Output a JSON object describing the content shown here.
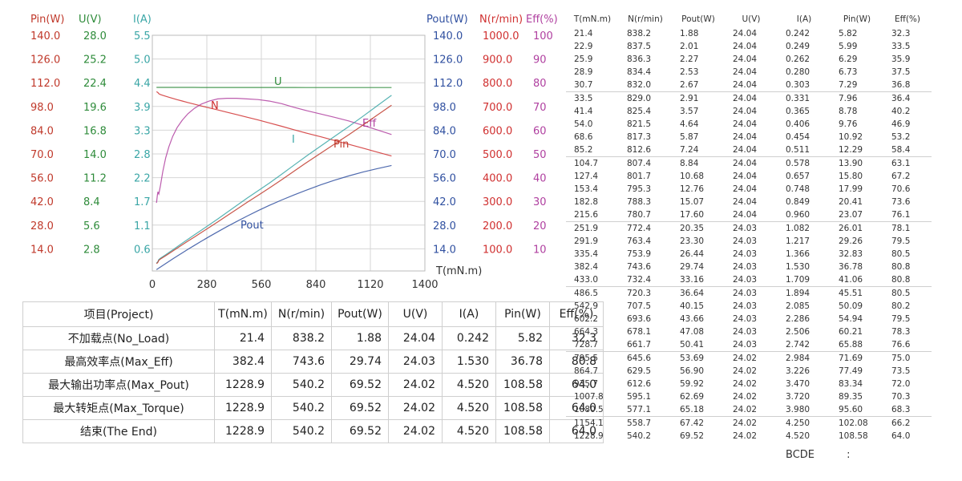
{
  "chart_data": {
    "type": "line",
    "x_axis": {
      "label": "T(mN.m)",
      "ticks": [
        0,
        280,
        560,
        840,
        1120,
        1400
      ],
      "range": [
        0,
        1400
      ]
    },
    "y_axes": [
      {
        "name": "Pin(W)",
        "color": "#c0392b",
        "ticks": [
          "140.0",
          "126.0",
          "112.0",
          "98.0",
          "84.0",
          "70.0",
          "56.0",
          "42.0",
          "28.0",
          "14.0"
        ]
      },
      {
        "name": "U(V)",
        "color": "#2e8b3a",
        "ticks": [
          "28.0",
          "25.2",
          "22.4",
          "19.6",
          "16.8",
          "14.0",
          "11.2",
          "8.4",
          "5.6",
          "2.8"
        ]
      },
      {
        "name": "I(A)",
        "color": "#3aa6a6",
        "ticks": [
          "5.5",
          "5.0",
          "4.4",
          "3.9",
          "3.3",
          "2.8",
          "2.2",
          "1.7",
          "1.1",
          "0.6"
        ]
      },
      {
        "name": "Pout(W)",
        "color": "#3050a0",
        "ticks": [
          "140.0",
          "126.0",
          "112.0",
          "98.0",
          "84.0",
          "70.0",
          "56.0",
          "42.0",
          "28.0",
          "14.0"
        ]
      },
      {
        "name": "N(r/min)",
        "color": "#d03030",
        "ticks": [
          "1000.0",
          "900.0",
          "800.0",
          "700.0",
          "600.0",
          "500.0",
          "400.0",
          "300.0",
          "200.0",
          "100.0"
        ]
      },
      {
        "name": "Eff(%)",
        "color": "#b040a0",
        "ticks": [
          "100",
          "90",
          "80",
          "70",
          "60",
          "50",
          "40",
          "30",
          "20",
          "10"
        ]
      }
    ],
    "series": [
      {
        "name": "U",
        "color": "#2e8b3a",
        "axis_max": 30.8
      },
      {
        "name": "N",
        "color": "#d03030",
        "axis_max": 1100
      },
      {
        "name": "Eff",
        "color": "#b040a0",
        "axis_max": 110
      },
      {
        "name": "I",
        "color": "#3aa6a6",
        "axis_max": 6.05
      },
      {
        "name": "Pin",
        "color": "#c0392b",
        "axis_max": 154
      },
      {
        "name": "Pout",
        "color": "#3050a0",
        "axis_max": 154
      }
    ],
    "columns": [
      "T(mN.m)",
      "N(r/min)",
      "Pout(W)",
      "U(V)",
      "I(A)",
      "Pin(W)",
      "Eff(%)"
    ],
    "rows": [
      [
        21.4,
        838.2,
        1.88,
        24.04,
        0.242,
        5.82,
        32.3
      ],
      [
        22.9,
        837.5,
        2.01,
        24.04,
        0.249,
        5.99,
        33.5
      ],
      [
        25.9,
        836.3,
        2.27,
        24.04,
        0.262,
        6.29,
        35.9
      ],
      [
        28.9,
        834.4,
        2.53,
        24.04,
        0.28,
        6.73,
        37.5
      ],
      [
        30.7,
        832.0,
        2.67,
        24.04,
        0.303,
        7.29,
        36.8
      ],
      [
        33.5,
        829.0,
        2.91,
        24.04,
        0.331,
        7.96,
        36.4
      ],
      [
        41.4,
        825.4,
        3.57,
        24.04,
        0.365,
        8.78,
        40.2
      ],
      [
        54.0,
        821.5,
        4.64,
        24.04,
        0.406,
        9.76,
        46.9
      ],
      [
        68.6,
        817.3,
        5.87,
        24.04,
        0.454,
        10.92,
        53.2
      ],
      [
        85.2,
        812.6,
        7.24,
        24.04,
        0.511,
        12.29,
        58.4
      ],
      [
        104.7,
        807.4,
        8.84,
        24.04,
        0.578,
        13.9,
        63.1
      ],
      [
        127.4,
        801.7,
        10.68,
        24.04,
        0.657,
        15.8,
        67.2
      ],
      [
        153.4,
        795.3,
        12.76,
        24.04,
        0.748,
        17.99,
        70.6
      ],
      [
        182.8,
        788.3,
        15.07,
        24.04,
        0.849,
        20.41,
        73.6
      ],
      [
        215.6,
        780.7,
        17.6,
        24.04,
        0.96,
        23.07,
        76.1
      ],
      [
        251.9,
        772.4,
        20.35,
        24.03,
        1.082,
        26.01,
        78.1
      ],
      [
        291.9,
        763.4,
        23.3,
        24.03,
        1.217,
        29.26,
        79.5
      ],
      [
        335.4,
        753.9,
        26.44,
        24.03,
        1.366,
        32.83,
        80.5
      ],
      [
        382.4,
        743.6,
        29.74,
        24.03,
        1.53,
        36.78,
        80.8
      ],
      [
        433.0,
        732.4,
        33.16,
        24.03,
        1.709,
        41.06,
        80.8
      ],
      [
        486.5,
        720.3,
        36.64,
        24.03,
        1.894,
        45.51,
        80.5
      ],
      [
        542.9,
        707.5,
        40.15,
        24.03,
        2.085,
        50.09,
        80.2
      ],
      [
        602.2,
        693.6,
        43.66,
        24.03,
        2.286,
        54.94,
        79.5
      ],
      [
        664.3,
        678.1,
        47.08,
        24.03,
        2.506,
        60.21,
        78.3
      ],
      [
        728.7,
        661.7,
        50.41,
        24.03,
        2.742,
        65.88,
        76.6
      ],
      [
        795.5,
        645.6,
        53.69,
        24.02,
        2.984,
        71.69,
        75.0
      ],
      [
        864.7,
        629.5,
        56.9,
        24.02,
        3.226,
        77.49,
        73.5
      ],
      [
        935.7,
        612.6,
        59.92,
        24.02,
        3.47,
        83.34,
        72.0
      ],
      [
        1007.8,
        595.1,
        62.69,
        24.02,
        3.72,
        89.35,
        70.3
      ],
      [
        1080.5,
        577.1,
        65.18,
        24.02,
        3.98,
        95.6,
        68.3
      ],
      [
        1154.1,
        558.7,
        67.42,
        24.02,
        4.25,
        102.08,
        66.2
      ],
      [
        1228.9,
        540.2,
        69.52,
        24.02,
        4.52,
        108.58,
        64.0
      ]
    ],
    "grid": true,
    "legend": "none"
  },
  "summary_table": {
    "headers": [
      "项目(Project)",
      "T(mN.m)",
      "N(r/min)",
      "Pout(W)",
      "U(V)",
      "I(A)",
      "Pin(W)",
      "Eff(%)"
    ],
    "rows": [
      [
        "不加载点(No_Load)",
        "21.4",
        "838.2",
        "1.88",
        "24.04",
        "0.242",
        "5.82",
        "32.3"
      ],
      [
        "最高效率点(Max_Eff)",
        "382.4",
        "743.6",
        "29.74",
        "24.03",
        "1.530",
        "36.78",
        "80.8"
      ],
      [
        "最大输出功率点(Max_Pout)",
        "1228.9",
        "540.2",
        "69.52",
        "24.02",
        "4.520",
        "108.58",
        "64.0"
      ],
      [
        "最大转矩点(Max_Torque)",
        "1228.9",
        "540.2",
        "69.52",
        "24.02",
        "4.520",
        "108.58",
        "64.0"
      ],
      [
        "结束(The End)",
        "1228.9",
        "540.2",
        "69.52",
        "24.02",
        "4.520",
        "108.58",
        "64.0"
      ]
    ]
  },
  "footer": {
    "label": "BCDE",
    "separator": ":"
  }
}
